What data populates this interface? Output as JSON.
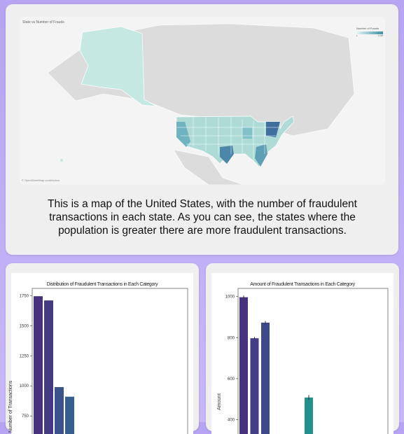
{
  "map_section": {
    "map_title": "State vs Number of Frauds",
    "legend_title": "Number of Frauds",
    "legend_min": "1",
    "legend_max": "1,195",
    "attribution": "© OpenStreetMap contributors",
    "description": "This is a map of the United States, with the number of fraudulent transactions in each state. As you can see, the states where the population is greater there are more fraudulent transactions.",
    "colors": {
      "land": "#dcdcdc",
      "low": "#d8f0ef",
      "high": "#3a6f9e",
      "water": "#f4f4f4"
    }
  },
  "chart_data": [
    {
      "type": "bar",
      "title": "Distribution of Fraudulent Transactions in Each Category",
      "ylabel": "Number of Transactions",
      "xlabel": "",
      "yticks": [
        750,
        1000,
        1250,
        1500,
        1750
      ],
      "ylim": [
        600,
        1810
      ],
      "values": [
        1745,
        1710,
        990,
        910
      ],
      "colors": [
        "#46327e",
        "#443a83",
        "#3b528b",
        "#365d8d"
      ]
    },
    {
      "type": "bar",
      "title": "Amount of Fraudulent Transactions in Each Category",
      "ylabel": "Amount",
      "xlabel": "",
      "yticks": [
        400,
        600,
        800,
        1000
      ],
      "ylim": [
        330,
        1040
      ],
      "values": [
        997,
        797,
        873,
        null,
        null,
        null,
        508
      ],
      "colors": [
        "#46327e",
        "#433e85",
        "#3e4989",
        "#39568c",
        "#2d708e",
        "#25858e",
        "#21918c"
      ],
      "errors": [
        8,
        6,
        8,
        null,
        null,
        null,
        12
      ]
    }
  ]
}
